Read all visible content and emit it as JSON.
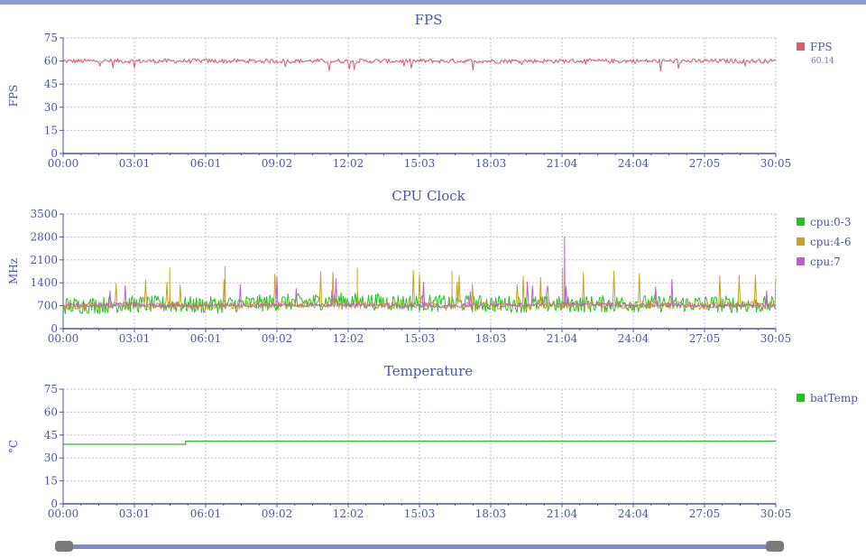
{
  "colors": {
    "axis": "#4a55a8",
    "grid": "#b9bedf",
    "fps": "#e05a6e",
    "cpu0_3": "#22c422",
    "cpu4_6": "#c9a21b",
    "cpu7": "#c35ad6",
    "batTemp": "#22c422",
    "slider": "#7f88cc",
    "handle": "#7a7a7a"
  },
  "x_ticks": [
    "00:00",
    "03:01",
    "06:01",
    "09:02",
    "12:02",
    "15:03",
    "18:03",
    "21:04",
    "24:04",
    "27:05",
    "30:05"
  ],
  "chart_data": [
    {
      "type": "line",
      "title": "FPS",
      "ylabel": "FPS",
      "ylim": [
        0,
        75
      ],
      "yticks": [
        "0",
        "15",
        "30",
        "45",
        "60",
        "75"
      ],
      "x_ticks": [
        "00:00",
        "03:01",
        "06:01",
        "09:02",
        "12:02",
        "15:03",
        "18:03",
        "21:04",
        "24:04",
        "27:05",
        "30:05"
      ],
      "grid": true,
      "legend_position": "right",
      "series": [
        {
          "name": "FPS",
          "color": "#e05a6e",
          "summary_label": "60.14",
          "mean": 60.14,
          "noise": 1.5,
          "values": [
            60,
            60,
            60,
            60,
            60,
            60,
            60,
            60,
            60,
            60,
            60
          ]
        }
      ]
    },
    {
      "type": "line",
      "title": "CPU Clock",
      "ylabel": "MHz",
      "ylim": [
        0,
        3500
      ],
      "yticks": [
        "0",
        "700",
        "1400",
        "2100",
        "2800",
        "3500"
      ],
      "x_ticks": [
        "00:00",
        "03:01",
        "06:01",
        "09:02",
        "12:02",
        "15:03",
        "18:03",
        "21:04",
        "24:04",
        "27:05",
        "30:05"
      ],
      "grid": true,
      "legend_position": "right",
      "series": [
        {
          "name": "cpu:0-3",
          "color": "#22c422",
          "values": [
            700,
            750,
            720,
            800,
            850,
            780,
            760,
            740,
            770,
            760,
            720
          ]
        },
        {
          "name": "cpu:4-6",
          "color": "#c9a21b",
          "values": [
            700,
            720,
            700,
            750,
            720,
            710,
            700,
            720,
            730,
            700,
            720
          ]
        },
        {
          "name": "cpu:7",
          "color": "#c35ad6",
          "values": [
            700,
            720,
            700,
            720,
            720,
            700,
            700,
            760,
            720,
            700,
            700
          ]
        }
      ],
      "peaks": [
        {
          "series": "cpu:7",
          "time": "21:10",
          "value": 2800
        },
        {
          "series": "cpu:4-6",
          "time": "04:30",
          "value": 1850
        },
        {
          "series": "cpu:4-6",
          "time": "06:50",
          "value": 1900
        },
        {
          "series": "cpu:4-6",
          "time": "12:25",
          "value": 1850
        },
        {
          "series": "cpu:4-6",
          "time": "21:05",
          "value": 1850
        },
        {
          "series": "cpu:4-6",
          "time": "16:25",
          "value": 1750
        }
      ]
    },
    {
      "type": "line",
      "title": "Temperature",
      "ylabel": "°C",
      "ylim": [
        0,
        75
      ],
      "yticks": [
        "0",
        "15",
        "30",
        "45",
        "60",
        "75"
      ],
      "x_ticks": [
        "00:00",
        "03:01",
        "06:01",
        "09:02",
        "12:02",
        "15:03",
        "18:03",
        "21:04",
        "24:04",
        "27:05",
        "30:05"
      ],
      "grid": true,
      "legend_position": "right",
      "series": [
        {
          "name": "batTemp",
          "color": "#22c422",
          "x": [
            "00:00",
            "05:10",
            "05:10",
            "30:05"
          ],
          "values": [
            39,
            39,
            41,
            41
          ]
        }
      ]
    }
  ]
}
